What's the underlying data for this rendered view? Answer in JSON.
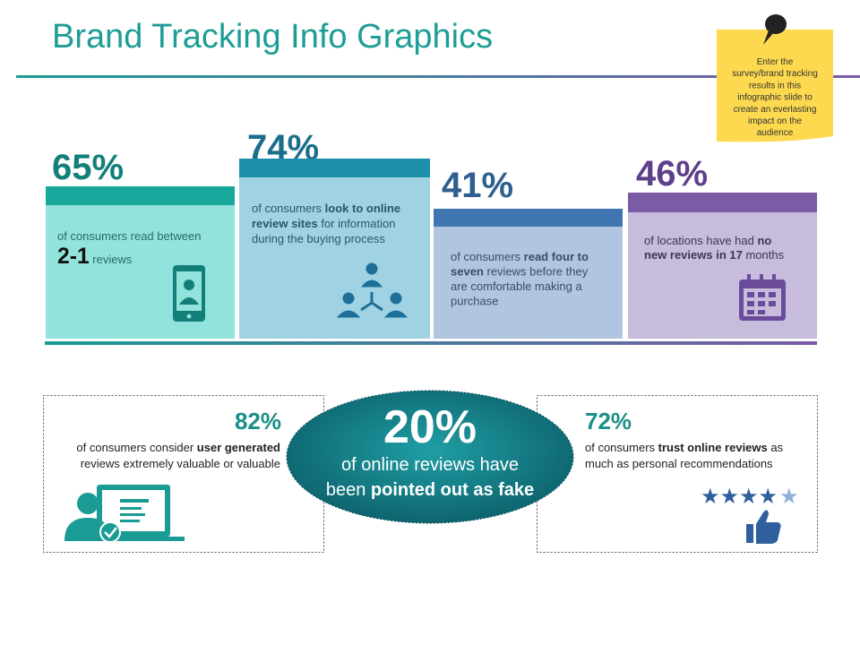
{
  "title": "Brand Tracking Info Graphics",
  "note": {
    "lines": [
      "Enter the",
      "survey/brand tracking",
      "results in this",
      "infographic slide to",
      "create an everlasting",
      "impact on the",
      "audience"
    ]
  },
  "cards": [
    {
      "stat": "65%",
      "lines": [
        [
          {
            "text": "of consumers read between",
            "bold": false
          }
        ],
        [
          {
            "text": "2-1",
            "bold": true,
            "large": true
          },
          {
            "text": " reviews",
            "bold": false
          }
        ]
      ]
    },
    {
      "stat": "74%",
      "lines": [
        [
          {
            "text": "of consumers ",
            "bold": false
          },
          {
            "text": "look to online",
            "bold": true
          }
        ],
        [
          {
            "text": "review sites",
            "bold": true
          },
          {
            "text": " for information",
            "bold": false
          }
        ],
        [
          {
            "text": "during the buying process",
            "bold": false
          }
        ]
      ]
    },
    {
      "stat": "41%",
      "lines": [
        [
          {
            "text": "of consumers ",
            "bold": false
          },
          {
            "text": "read four to",
            "bold": true
          }
        ],
        [
          {
            "text": "seven",
            "bold": true
          },
          {
            "text": " reviews before they",
            "bold": false
          }
        ],
        [
          {
            "text": "are comfortable making a",
            "bold": false
          }
        ],
        [
          {
            "text": "purchase",
            "bold": false
          }
        ]
      ]
    },
    {
      "stat": "46%",
      "lines": [
        [
          {
            "text": "of locations have had ",
            "bold": false
          },
          {
            "text": "no",
            "bold": true
          }
        ],
        [
          {
            "text": "new reviews in 17",
            "bold": true
          },
          {
            "text": " months",
            "bold": false
          }
        ]
      ]
    }
  ],
  "left_box": {
    "stat": "82%",
    "lines": [
      [
        {
          "text": "of consumers consider ",
          "bold": false
        },
        {
          "text": "user generated",
          "bold": true
        }
      ],
      [
        {
          "text": "reviews extremely valuable or valuable",
          "bold": false
        }
      ]
    ]
  },
  "center": {
    "stat": "20%",
    "lines": [
      [
        {
          "text": "of online reviews have",
          "bold": false
        }
      ],
      [
        {
          "text": "been ",
          "bold": false
        },
        {
          "text": "pointed out as fake",
          "bold": true
        }
      ]
    ]
  },
  "right_box": {
    "stat": "72%",
    "lines": [
      [
        {
          "text": "of consumers ",
          "bold": false
        },
        {
          "text": "trust online reviews",
          "bold": true
        },
        {
          "text": " as",
          "bold": false
        }
      ],
      [
        {
          "text": "much as personal recommendations",
          "bold": false
        }
      ]
    ]
  }
}
